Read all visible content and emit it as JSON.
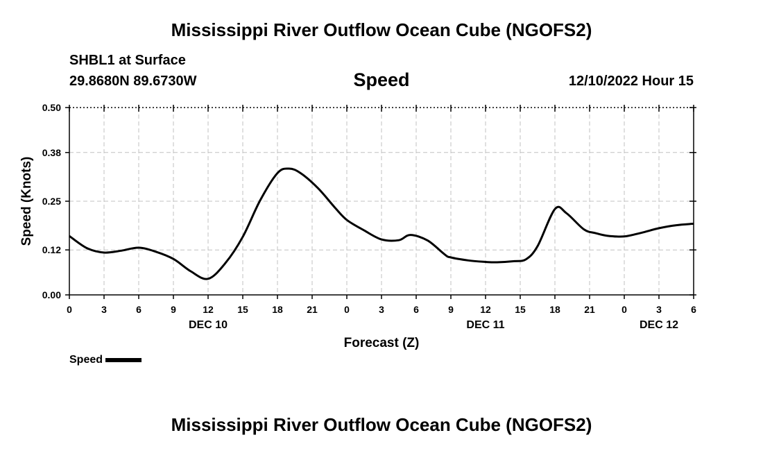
{
  "header": {
    "title": "Mississippi River Outflow Ocean Cube (NGOFS2)",
    "station": "SHBL1 at Surface",
    "coordinates": "29.8680N  89.6730W",
    "chart_title": "Speed",
    "datetime": "12/10/2022 Hour 15"
  },
  "footer": {
    "title": "Mississippi River Outflow Ocean Cube (NGOFS2)"
  },
  "legend": {
    "label": "Speed",
    "color": "#000000"
  },
  "chart_data": {
    "type": "line",
    "title": "Speed",
    "xlabel": "Forecast (Z)",
    "ylabel": "Speed (Knots)",
    "xlim": [
      0,
      54
    ],
    "ylim": [
      0,
      0.5
    ],
    "grid": true,
    "y_ticks": [
      0.0,
      0.12,
      0.25,
      0.38,
      0.5
    ],
    "y_tick_labels": [
      "0.00",
      "0.12",
      "0.25",
      "0.38",
      "0.50"
    ],
    "x_ticks": [
      0,
      3,
      6,
      9,
      12,
      15,
      18,
      21,
      24,
      27,
      30,
      33,
      36,
      39,
      42,
      45,
      48,
      51,
      54
    ],
    "x_tick_labels": [
      "0",
      "3",
      "6",
      "9",
      "12",
      "15",
      "18",
      "21",
      "0",
      "3",
      "6",
      "9",
      "12",
      "15",
      "18",
      "21",
      "0",
      "3",
      "6"
    ],
    "date_labels": [
      {
        "x": 12,
        "label": "DEC 10"
      },
      {
        "x": 36,
        "label": "DEC 11"
      },
      {
        "x": 51,
        "label": "DEC 12"
      }
    ],
    "series": [
      {
        "name": "Speed",
        "color": "#000000",
        "x": [
          0,
          1.5,
          3,
          4.5,
          6,
          7.5,
          9,
          10.5,
          12,
          13.5,
          15,
          16.5,
          18,
          19,
          20,
          21.5,
          23,
          24,
          25.5,
          27,
          28.5,
          29.5,
          31,
          32.5,
          33,
          34.5,
          36,
          37,
          38.5,
          39.5,
          40.5,
          42,
          43,
          44.5,
          45.5,
          46.5,
          48,
          49.5,
          51,
          52.5,
          54
        ],
        "y": [
          0.157,
          0.125,
          0.113,
          0.118,
          0.126,
          0.115,
          0.096,
          0.063,
          0.043,
          0.085,
          0.155,
          0.252,
          0.325,
          0.337,
          0.325,
          0.285,
          0.232,
          0.2,
          0.172,
          0.148,
          0.146,
          0.16,
          0.145,
          0.107,
          0.1,
          0.092,
          0.088,
          0.087,
          0.09,
          0.095,
          0.13,
          0.229,
          0.218,
          0.175,
          0.165,
          0.158,
          0.156,
          0.166,
          0.178,
          0.186,
          0.19
        ]
      }
    ]
  }
}
